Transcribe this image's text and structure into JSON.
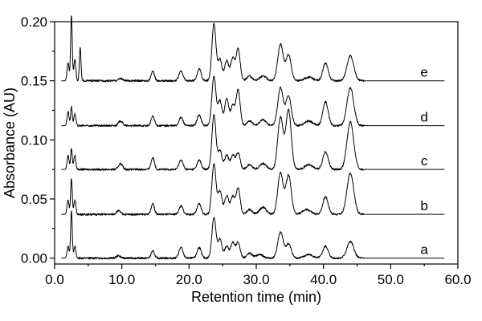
{
  "chart_data": {
    "type": "line",
    "title": "",
    "xlabel": "Retention time (min)",
    "ylabel": "Absorbance (AU)",
    "xlim": [
      0.0,
      60.0
    ],
    "ylim": [
      -0.005,
      0.2
    ],
    "x_ticks": [
      "0.0",
      "10.0",
      "20.0",
      "30.0",
      "40.0",
      "50.0",
      "60.0"
    ],
    "x_tick_values": [
      0,
      10,
      20,
      30,
      40,
      50,
      60
    ],
    "y_ticks": [
      "0.00",
      "0.05",
      "0.10",
      "0.15",
      "0.20"
    ],
    "y_tick_values": [
      0.0,
      0.05,
      0.1,
      0.15,
      0.2
    ],
    "grid": false,
    "legend": "none",
    "series": [
      {
        "name": "a",
        "baseline": 0.0,
        "label_x": 55,
        "peaks": [
          [
            2.0,
            0.01,
            0.15
          ],
          [
            2.5,
            0.04,
            0.12
          ],
          [
            3.0,
            0.01,
            0.15
          ],
          [
            9.5,
            0.002,
            0.3
          ],
          [
            14.6,
            0.006,
            0.25
          ],
          [
            18.8,
            0.009,
            0.3
          ],
          [
            21.5,
            0.009,
            0.3
          ],
          [
            23.7,
            0.034,
            0.3
          ],
          [
            24.6,
            0.016,
            0.3
          ],
          [
            25.6,
            0.01,
            0.3
          ],
          [
            26.5,
            0.013,
            0.3
          ],
          [
            27.3,
            0.013,
            0.3
          ],
          [
            29.0,
            0.004,
            0.4
          ],
          [
            30.5,
            0.003,
            0.5
          ],
          [
            33.6,
            0.022,
            0.4
          ],
          [
            34.8,
            0.012,
            0.4
          ],
          [
            37.8,
            0.003,
            0.6
          ],
          [
            40.3,
            0.01,
            0.4
          ],
          [
            44.0,
            0.014,
            0.5
          ]
        ]
      },
      {
        "name": "b",
        "baseline": 0.037,
        "label_x": 55,
        "peaks": [
          [
            2.0,
            0.012,
            0.15
          ],
          [
            2.5,
            0.03,
            0.12
          ],
          [
            3.0,
            0.012,
            0.15
          ],
          [
            9.5,
            0.003,
            0.3
          ],
          [
            14.6,
            0.009,
            0.25
          ],
          [
            18.8,
            0.007,
            0.3
          ],
          [
            21.5,
            0.009,
            0.3
          ],
          [
            23.7,
            0.043,
            0.3
          ],
          [
            24.6,
            0.02,
            0.3
          ],
          [
            25.6,
            0.016,
            0.3
          ],
          [
            26.5,
            0.015,
            0.3
          ],
          [
            27.3,
            0.022,
            0.3
          ],
          [
            29.0,
            0.004,
            0.4
          ],
          [
            31.0,
            0.006,
            0.5
          ],
          [
            33.6,
            0.035,
            0.4
          ],
          [
            34.8,
            0.033,
            0.4
          ],
          [
            37.5,
            0.004,
            0.6
          ],
          [
            40.3,
            0.015,
            0.4
          ],
          [
            44.0,
            0.035,
            0.5
          ]
        ]
      },
      {
        "name": "c",
        "baseline": 0.075,
        "label_x": 55,
        "peaks": [
          [
            2.0,
            0.012,
            0.15
          ],
          [
            2.5,
            0.018,
            0.12
          ],
          [
            3.0,
            0.012,
            0.15
          ],
          [
            9.8,
            0.005,
            0.3
          ],
          [
            14.6,
            0.01,
            0.25
          ],
          [
            18.8,
            0.008,
            0.3
          ],
          [
            21.5,
            0.008,
            0.3
          ],
          [
            23.7,
            0.046,
            0.3
          ],
          [
            24.6,
            0.016,
            0.3
          ],
          [
            25.6,
            0.012,
            0.3
          ],
          [
            26.5,
            0.012,
            0.3
          ],
          [
            27.3,
            0.014,
            0.3
          ],
          [
            29.0,
            0.004,
            0.4
          ],
          [
            31.0,
            0.005,
            0.5
          ],
          [
            33.6,
            0.044,
            0.4
          ],
          [
            34.8,
            0.05,
            0.4
          ],
          [
            37.8,
            0.004,
            0.6
          ],
          [
            40.3,
            0.015,
            0.4
          ],
          [
            44.0,
            0.04,
            0.5
          ]
        ]
      },
      {
        "name": "d",
        "baseline": 0.112,
        "label_x": 55,
        "peaks": [
          [
            2.0,
            0.012,
            0.15
          ],
          [
            2.5,
            0.016,
            0.12
          ],
          [
            3.0,
            0.01,
            0.15
          ],
          [
            9.8,
            0.004,
            0.3
          ],
          [
            14.6,
            0.008,
            0.25
          ],
          [
            18.8,
            0.007,
            0.3
          ],
          [
            21.5,
            0.009,
            0.3
          ],
          [
            23.7,
            0.042,
            0.3
          ],
          [
            24.6,
            0.021,
            0.3
          ],
          [
            25.6,
            0.023,
            0.3
          ],
          [
            26.5,
            0.017,
            0.3
          ],
          [
            27.3,
            0.03,
            0.3
          ],
          [
            29.0,
            0.004,
            0.4
          ],
          [
            31.0,
            0.005,
            0.5
          ],
          [
            33.6,
            0.032,
            0.4
          ],
          [
            34.8,
            0.025,
            0.4
          ],
          [
            37.8,
            0.004,
            0.6
          ],
          [
            40.3,
            0.02,
            0.4
          ],
          [
            44.0,
            0.032,
            0.5
          ]
        ]
      },
      {
        "name": "e",
        "baseline": 0.15,
        "label_x": 55,
        "peaks": [
          [
            2.0,
            0.015,
            0.15
          ],
          [
            2.5,
            0.055,
            0.12
          ],
          [
            3.0,
            0.018,
            0.15
          ],
          [
            3.8,
            0.028,
            0.12
          ],
          [
            9.8,
            0.002,
            0.3
          ],
          [
            14.6,
            0.008,
            0.25
          ],
          [
            18.8,
            0.008,
            0.3
          ],
          [
            21.5,
            0.01,
            0.3
          ],
          [
            23.7,
            0.048,
            0.3
          ],
          [
            24.6,
            0.018,
            0.3
          ],
          [
            25.6,
            0.017,
            0.3
          ],
          [
            26.5,
            0.019,
            0.3
          ],
          [
            27.3,
            0.027,
            0.3
          ],
          [
            29.0,
            0.004,
            0.4
          ],
          [
            31.0,
            0.004,
            0.5
          ],
          [
            33.6,
            0.031,
            0.4
          ],
          [
            34.8,
            0.022,
            0.4
          ],
          [
            37.8,
            0.003,
            0.6
          ],
          [
            40.3,
            0.015,
            0.4
          ],
          [
            44.0,
            0.021,
            0.5
          ]
        ]
      }
    ]
  }
}
